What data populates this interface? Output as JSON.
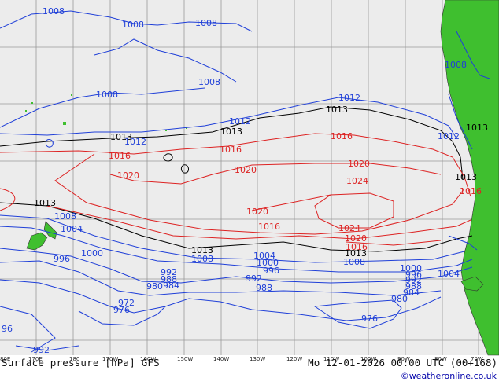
{
  "map": {
    "title": "Surface pressure [hPa] GFS",
    "valid_time": "Mo 12-01-2026 00:00 UTC (00+168)",
    "credit": "©weatheronline.co.uk",
    "longitude_ticks": [
      "80E",
      "170E",
      "180",
      "170W",
      "160W",
      "150W",
      "140W",
      "130W",
      "120W",
      "110W",
      "100W",
      "90W",
      "80W",
      "70W"
    ],
    "isobars": {
      "reference_hpa": 1013,
      "blue_labels": [
        "1008",
        "1008",
        "1008",
        "1008",
        "1008",
        "1008",
        "1012",
        "1012",
        "1012",
        "1012",
        "1008",
        "1004",
        "1000",
        "996",
        "992",
        "988",
        "984",
        "980",
        "976",
        "972",
        "96",
        "992",
        "1004",
        "1000",
        "996",
        "992",
        "988",
        "1000",
        "996",
        "992",
        "988",
        "984",
        "980",
        "976",
        "1004",
        "1008",
        "1008"
      ],
      "red_labels": [
        "1016",
        "1020",
        "1016",
        "1020",
        "1020",
        "1024",
        "1016",
        "1020",
        "1024",
        "1016",
        "1016",
        "1020",
        "1016"
      ],
      "black_labels": [
        "1013",
        "1013",
        "1013",
        "1013",
        "1013",
        "1013",
        "1013",
        "1013"
      ],
      "colors": {
        "above_reference": "#dd2222",
        "below_reference": "#1f3fd8",
        "reference": "#000000",
        "land": "#3fbf2f",
        "sea": "#ececec",
        "grid": "#9a9a9a"
      }
    }
  }
}
